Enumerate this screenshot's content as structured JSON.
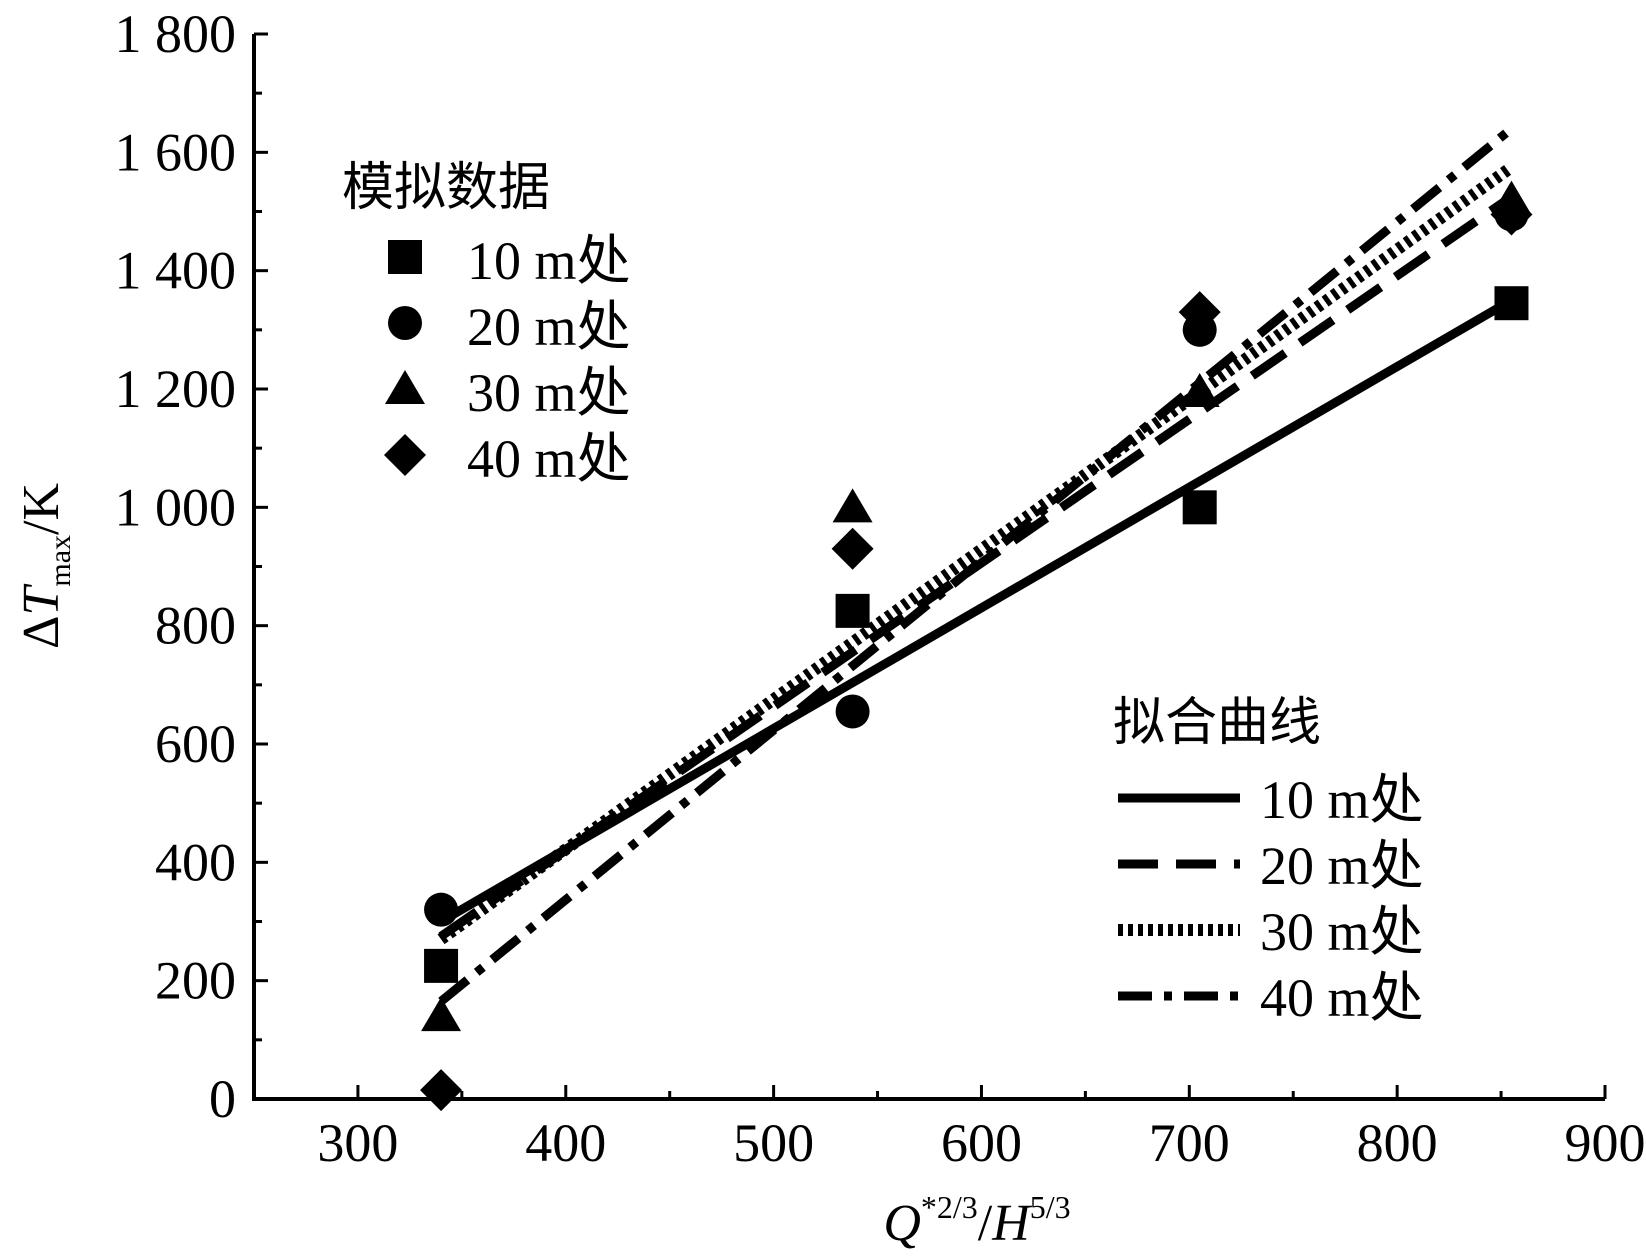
{
  "chart_data": {
    "type": "scatter",
    "xlabel": {
      "q": "Q",
      "q_sup": "*2/3",
      "slash": "/",
      "h": "H",
      "h_sup": "5/3"
    },
    "ylabel": {
      "delta": "Δ",
      "t": "T",
      "t_sub": "max",
      "unit": "/K"
    },
    "xlim": [
      250,
      900
    ],
    "ylim": [
      0,
      1800
    ],
    "xticks": [
      300,
      400,
      500,
      600,
      700,
      800,
      900
    ],
    "xtick_labels": [
      "300",
      "400",
      "500",
      "600",
      "700",
      "800",
      "900"
    ],
    "yticks": [
      0,
      200,
      400,
      600,
      800,
      1000,
      1200,
      1400,
      1600,
      1800
    ],
    "ytick_labels": [
      "0",
      "200",
      "400",
      "600",
      "800",
      "1 000",
      "1 200",
      "1 400",
      "1 600",
      "1 800"
    ],
    "grid": false,
    "scatter_legend": {
      "title": "模拟数据",
      "placement": "top-left"
    },
    "line_legend": {
      "title": "拟合曲线",
      "placement": "bottom-right"
    },
    "series": [
      {
        "name": "10 m处",
        "marker": "square",
        "line_style": "solid",
        "points": {
          "x": [
            340,
            538,
            705,
            855
          ],
          "y": [
            225,
            825,
            1000,
            1345
          ]
        },
        "fit": {
          "x": [
            340,
            855
          ],
          "y": [
            300,
            1350
          ]
        }
      },
      {
        "name": "20 m处",
        "marker": "circle",
        "line_style": "dashed",
        "points": {
          "x": [
            340,
            538,
            705,
            855
          ],
          "y": [
            320,
            655,
            1300,
            1495
          ]
        },
        "fit": {
          "x": [
            340,
            855
          ],
          "y": [
            275,
            1525
          ]
        }
      },
      {
        "name": "30 m处",
        "marker": "triangle",
        "line_style": "dotted",
        "points": {
          "x": [
            340,
            538,
            705,
            855
          ],
          "y": [
            140,
            1000,
            1195,
            1520
          ]
        },
        "fit": {
          "x": [
            340,
            855
          ],
          "y": [
            270,
            1575
          ]
        }
      },
      {
        "name": "40 m处",
        "marker": "diamond",
        "line_style": "dashdot",
        "points": {
          "x": [
            340,
            538,
            705,
            855
          ],
          "y": [
            15,
            930,
            1330,
            1495
          ]
        },
        "fit": {
          "x": [
            340,
            855
          ],
          "y": [
            165,
            1640
          ]
        }
      }
    ]
  }
}
